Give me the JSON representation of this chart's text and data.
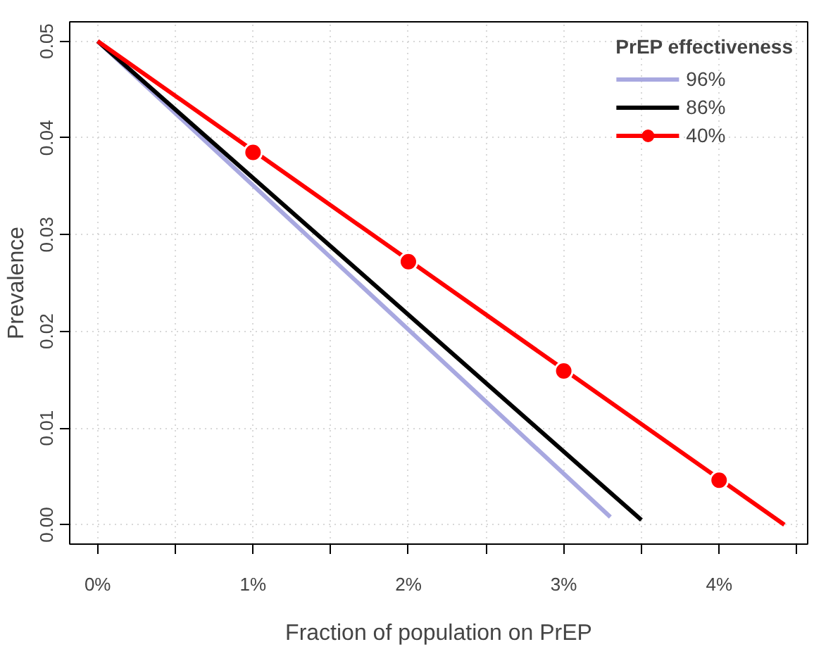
{
  "chart_data": {
    "type": "line",
    "xlabel": "Fraction of population on PrEP",
    "ylabel": "Prevalence",
    "legend_title": "PrEP effectiveness",
    "xlim": [
      -0.18,
      4.57
    ],
    "ylim": [
      -0.002,
      0.052
    ],
    "xticks": [
      {
        "value": 0,
        "label": "0%"
      },
      {
        "value": 0.5,
        "label": null
      },
      {
        "value": 1,
        "label": "1%"
      },
      {
        "value": 1.5,
        "label": null
      },
      {
        "value": 2,
        "label": "2%"
      },
      {
        "value": 2.5,
        "label": null
      },
      {
        "value": 3,
        "label": "3%"
      },
      {
        "value": 3.5,
        "label": null
      },
      {
        "value": 4,
        "label": "4%"
      },
      {
        "value": 4.5,
        "label": null
      }
    ],
    "yticks": [
      {
        "value": 0,
        "label": "0.00"
      },
      {
        "value": 0.01,
        "label": "0.01"
      },
      {
        "value": 0.02,
        "label": "0.02"
      },
      {
        "value": 0.03,
        "label": "0.03"
      },
      {
        "value": 0.04,
        "label": "0.04"
      },
      {
        "value": 0.05,
        "label": "0.05"
      }
    ],
    "grid": true,
    "legend": "top right",
    "line_style": "solid",
    "series": [
      {
        "name": "96%",
        "color": "#a8a8e0",
        "x": [
          0,
          3.3
        ],
        "values": [
          0.05,
          0.0008
        ]
      },
      {
        "name": "86%",
        "color": "#000000",
        "x": [
          0,
          3.5
        ],
        "values": [
          0.05,
          0.0005
        ]
      },
      {
        "name": "40%",
        "color": "#ff0000",
        "x": [
          0,
          4.42
        ],
        "values": [
          0.05,
          0.0
        ]
      },
      {
        "type": "scatter",
        "color": "#ff0000",
        "x": [
          1,
          2,
          3,
          4
        ],
        "values": [
          0.0385,
          0.0272,
          0.0159,
          0.0046
        ]
      }
    ]
  }
}
